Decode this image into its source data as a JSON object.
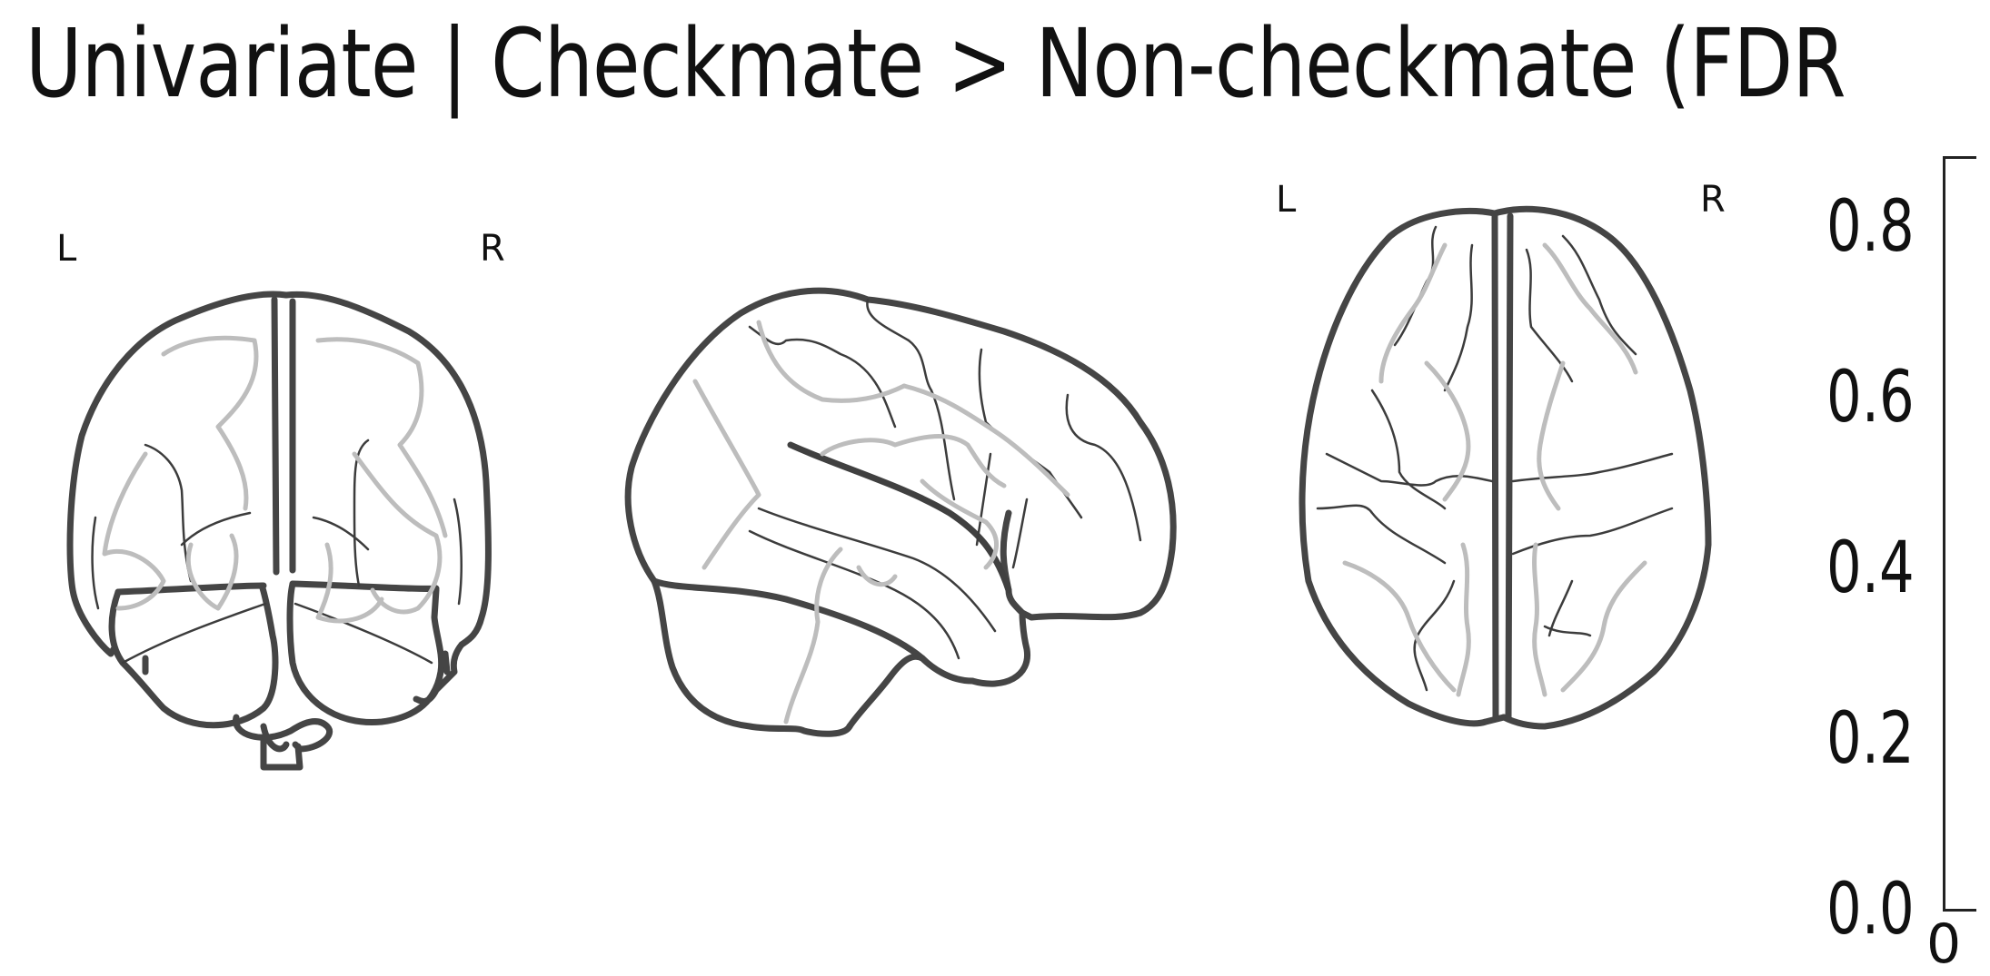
{
  "figure": {
    "title": "Univariate | Checkmate > Non-checkmate (FDR",
    "views": {
      "coronal": {
        "left_label": "L",
        "right_label": "R"
      },
      "sagittal": {},
      "axial": {
        "left_label": "L",
        "right_label": "R"
      }
    },
    "colorbar": {
      "ticks": [
        "0.8",
        "0.6",
        "0.4",
        "0.2",
        "0.0"
      ],
      "range": [
        0.0,
        0.8
      ],
      "partial_label": "0"
    },
    "colors": {
      "outline": "#454545",
      "sulci_gray": "#bdbdbd",
      "background": "#ffffff"
    }
  }
}
